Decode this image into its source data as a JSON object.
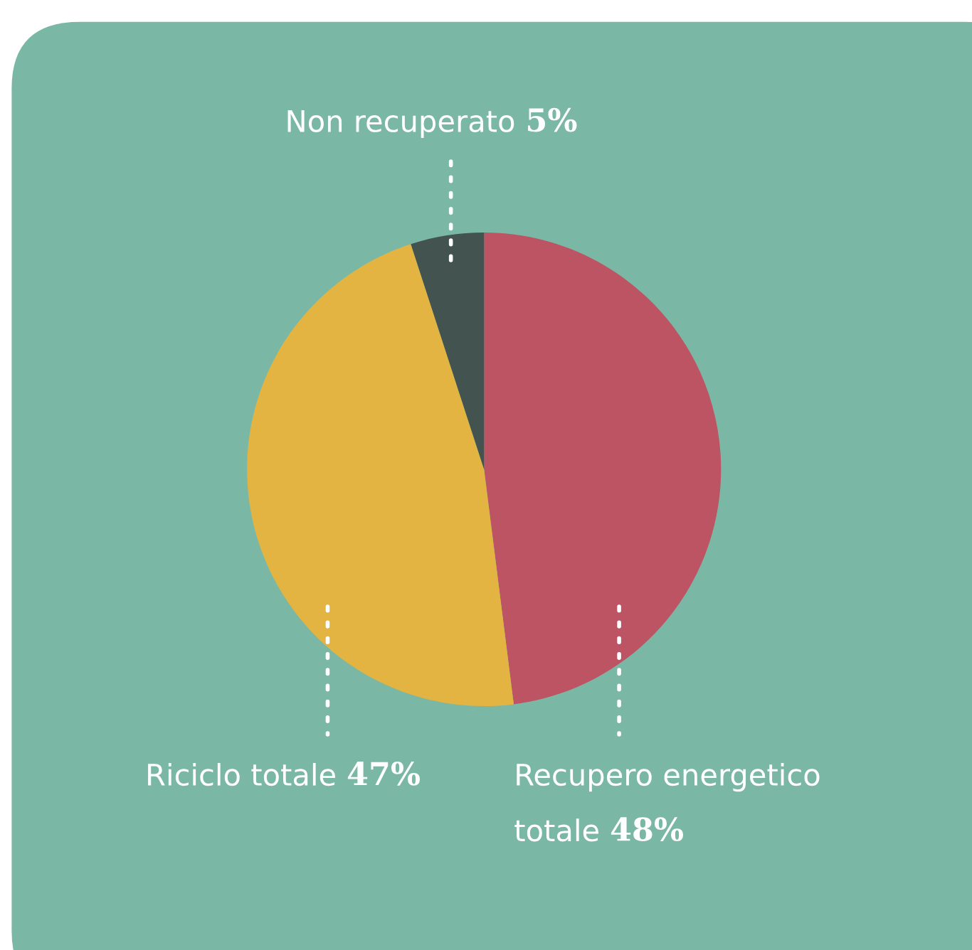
{
  "chart_data": {
    "type": "pie",
    "categories": [
      "Recupero energetico\ntotale",
      "Riciclo totale",
      "Non recuperato"
    ],
    "values": [
      48,
      47,
      5
    ],
    "value_labels": [
      "48%",
      "47%",
      "5%"
    ],
    "colors": [
      "#bc5464",
      "#e3b442",
      "#435450"
    ]
  }
}
